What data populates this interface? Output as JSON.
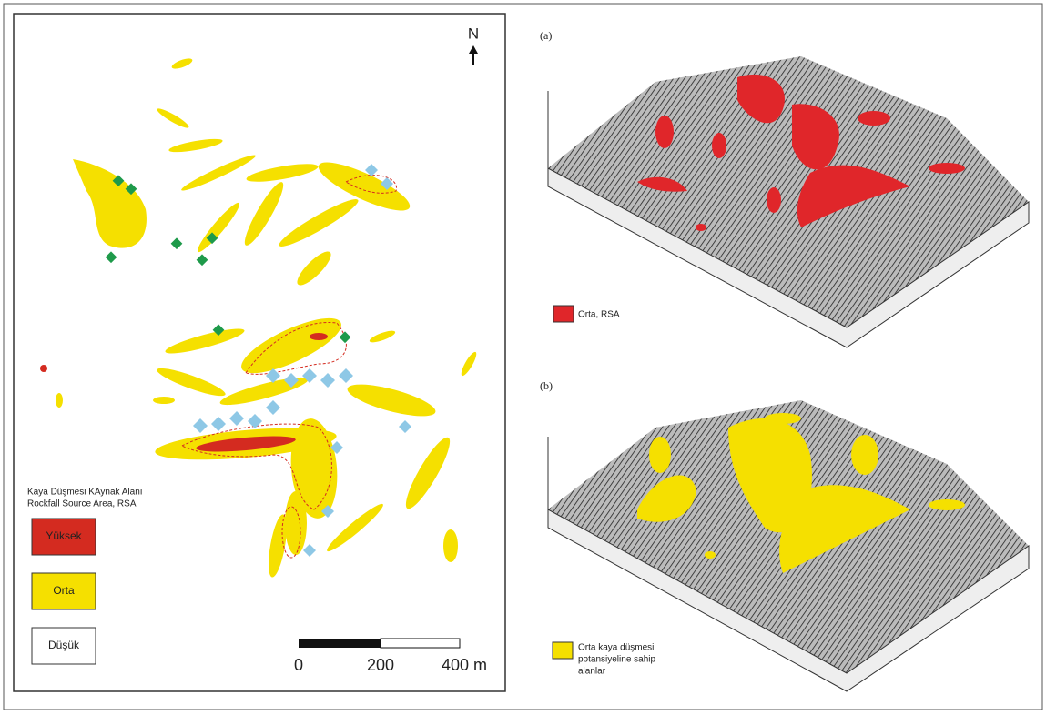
{
  "map": {
    "north": "N",
    "legend": {
      "title_lines": [
        "Kaya Düşmesi KAynak Alanı",
        "Rockfall Source Area, RSA"
      ],
      "items": [
        "Yüksek",
        "Orta",
        "Düşük"
      ]
    },
    "scale_bar": [
      "0",
      "200",
      "400 m"
    ]
  },
  "panels": [
    {
      "label": "(a)",
      "legend_lines": [
        "Orta, RSA"
      ]
    },
    {
      "label": "(b)",
      "legend_lines": [
        "Orta kaya düşmesi",
        "potansiyeline sahip",
        "alanlar"
      ]
    }
  ]
}
